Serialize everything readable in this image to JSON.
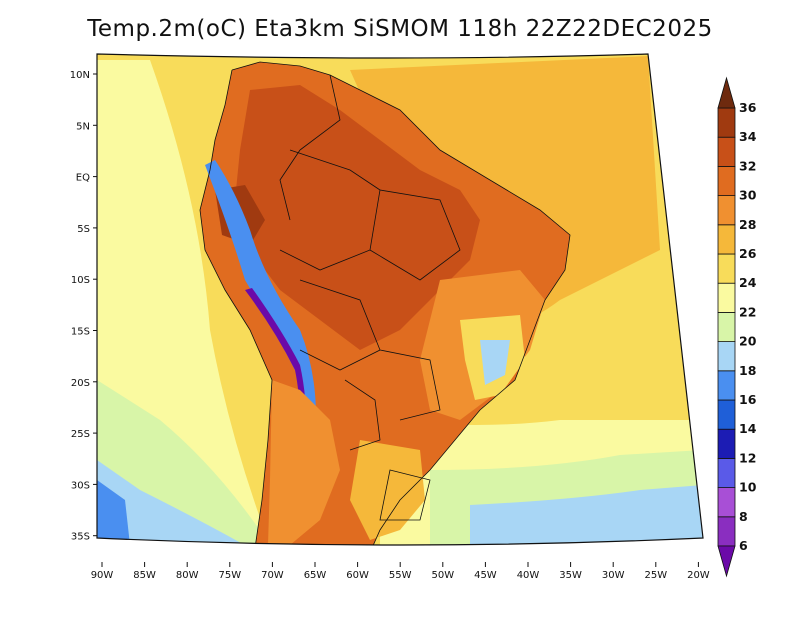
{
  "title": "Temp.2m(oC) Eta3km SiSMOM 118h 22Z22DEC2025",
  "lat_labels": [
    "10N",
    "5N",
    "EQ",
    "5S",
    "10S",
    "15S",
    "20S",
    "25S",
    "30S",
    "35S"
  ],
  "lon_labels": [
    "90W",
    "85W",
    "80W",
    "75W",
    "70W",
    "65W",
    "60W",
    "55W",
    "50W",
    "45W",
    "40W",
    "35W",
    "30W",
    "25W",
    "20W"
  ],
  "colorbar": {
    "labels": [
      "6",
      "8",
      "10",
      "12",
      "14",
      "16",
      "18",
      "20",
      "22",
      "24",
      "26",
      "28",
      "30",
      "32",
      "34",
      "36"
    ],
    "colors": [
      "#6b0aa8",
      "#8a2ec0",
      "#a84fd6",
      "#5a5ae8",
      "#1c1cb4",
      "#1f5fd8",
      "#4a8ff0",
      "#a8d6f5",
      "#d8f5a8",
      "#fafaa0",
      "#f8dc5a",
      "#f5b83a",
      "#f09030",
      "#e06c20",
      "#c85018",
      "#a03a10",
      "#6e2a0e"
    ]
  }
}
